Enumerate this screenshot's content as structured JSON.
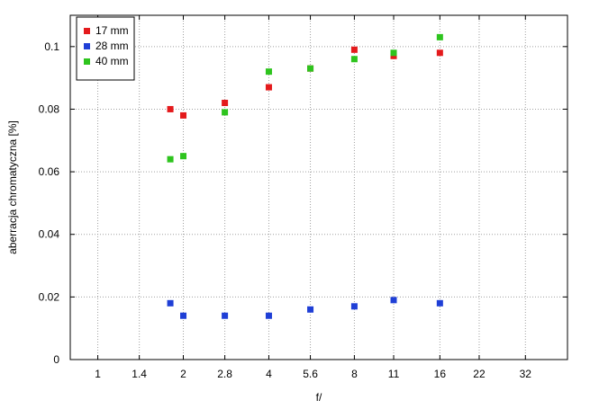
{
  "chart_data": {
    "type": "scatter",
    "xlabel": "f/",
    "ylabel": "aberracja chromatyczna [%]",
    "x_scale": "log2",
    "xlim": [
      0.8,
      45
    ],
    "ylim": [
      0,
      0.11
    ],
    "x_ticks": [
      {
        "value": 1,
        "label": "1"
      },
      {
        "value": 1.4,
        "label": "1.4"
      },
      {
        "value": 2,
        "label": "2"
      },
      {
        "value": 2.8,
        "label": "2.8"
      },
      {
        "value": 4,
        "label": "4"
      },
      {
        "value": 5.6,
        "label": "5.6"
      },
      {
        "value": 8,
        "label": "8"
      },
      {
        "value": 11,
        "label": "11"
      },
      {
        "value": 16,
        "label": "16"
      },
      {
        "value": 22,
        "label": "22"
      },
      {
        "value": 32,
        "label": "32"
      }
    ],
    "y_ticks": [
      {
        "value": 0,
        "label": "0"
      },
      {
        "value": 0.02,
        "label": "0.02"
      },
      {
        "value": 0.04,
        "label": "0.04"
      },
      {
        "value": 0.06,
        "label": "0.06"
      },
      {
        "value": 0.08,
        "label": "0.08"
      },
      {
        "value": 0.1,
        "label": "0.1"
      }
    ],
    "grid": true,
    "legend_position": "top-left",
    "series": [
      {
        "name": "17 mm",
        "color": "#e41a1c",
        "x": [
          1.8,
          2,
          2.8,
          4,
          5.6,
          8,
          11,
          16
        ],
        "y": [
          0.08,
          0.078,
          0.082,
          0.087,
          0.093,
          0.099,
          0.097,
          0.098
        ]
      },
      {
        "name": "28 mm",
        "color": "#1f3fd6",
        "x": [
          1.8,
          2,
          2.8,
          4,
          5.6,
          8,
          11,
          16
        ],
        "y": [
          0.018,
          0.014,
          0.014,
          0.014,
          0.016,
          0.017,
          0.019,
          0.018
        ]
      },
      {
        "name": "40 mm",
        "color": "#2ec41e",
        "x": [
          1.8,
          2,
          2.8,
          4,
          5.6,
          8,
          11,
          16
        ],
        "y": [
          0.064,
          0.065,
          0.079,
          0.092,
          0.093,
          0.096,
          0.098,
          0.103
        ]
      }
    ]
  }
}
